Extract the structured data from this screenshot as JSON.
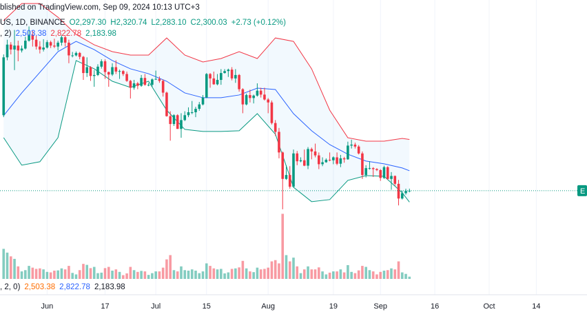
{
  "header": {
    "published": "blished on TradingView.com, Sep 09, 2024 10:13 UTC+3",
    "symbol": "US, 1D, BINANCE",
    "ohlc": [
      "O2,297.30",
      "H2,320.74",
      "L2,283.10",
      "C2,300.03",
      "+2.73 (+0.12%)"
    ]
  },
  "bb_legend": {
    "params": ", 2)",
    "values": [
      "2,503.38",
      "2,822.78",
      "2,183.98"
    ]
  },
  "bb_legend_lower": {
    "params": ", 2, 0)",
    "values": [
      "2,503.38",
      "2,822.78",
      "2,183.98"
    ]
  },
  "price_label": "E",
  "chart_data": {
    "type": "candlestick",
    "x": [
      "2024-05-20",
      "2024-05-21",
      "2024-05-22",
      "2024-05-23",
      "2024-05-24",
      "2024-05-25",
      "2024-05-26",
      "2024-05-27",
      "2024-05-28",
      "2024-05-29",
      "2024-05-30",
      "2024-05-31",
      "2024-06-01",
      "2024-06-02",
      "2024-06-03",
      "2024-06-04",
      "2024-06-05",
      "2024-06-06",
      "2024-06-07",
      "2024-06-08",
      "2024-06-09",
      "2024-06-10",
      "2024-06-11",
      "2024-06-12",
      "2024-06-13",
      "2024-06-14",
      "2024-06-15",
      "2024-06-16",
      "2024-06-17",
      "2024-06-18",
      "2024-06-19",
      "2024-06-20",
      "2024-06-21",
      "2024-06-22",
      "2024-06-23",
      "2024-06-24",
      "2024-06-25",
      "2024-06-26",
      "2024-06-27",
      "2024-06-28",
      "2024-06-29",
      "2024-06-30",
      "2024-07-01",
      "2024-07-02",
      "2024-07-03",
      "2024-07-04",
      "2024-07-05",
      "2024-07-06",
      "2024-07-07",
      "2024-07-08",
      "2024-07-09",
      "2024-07-10",
      "2024-07-11",
      "2024-07-12",
      "2024-07-13",
      "2024-07-14",
      "2024-07-15",
      "2024-07-16",
      "2024-07-17",
      "2024-07-18",
      "2024-07-19",
      "2024-07-20",
      "2024-07-21",
      "2024-07-22",
      "2024-07-23",
      "2024-07-24",
      "2024-07-25",
      "2024-07-26",
      "2024-07-27",
      "2024-07-28",
      "2024-07-29",
      "2024-07-30",
      "2024-07-31",
      "2024-08-01",
      "2024-08-02",
      "2024-08-03",
      "2024-08-04",
      "2024-08-05",
      "2024-08-06",
      "2024-08-07",
      "2024-08-08",
      "2024-08-09",
      "2024-08-10",
      "2024-08-11",
      "2024-08-12",
      "2024-08-13",
      "2024-08-14",
      "2024-08-15",
      "2024-08-16",
      "2024-08-17",
      "2024-08-18",
      "2024-08-19",
      "2024-08-20",
      "2024-08-21",
      "2024-08-22",
      "2024-08-23",
      "2024-08-24",
      "2024-08-25",
      "2024-08-26",
      "2024-08-27",
      "2024-08-28",
      "2024-08-29",
      "2024-08-30",
      "2024-08-31",
      "2024-09-01",
      "2024-09-02",
      "2024-09-03",
      "2024-09-04",
      "2024-09-05",
      "2024-09-06",
      "2024-09-07",
      "2024-09-08",
      "2024-09-09"
    ],
    "open": [
      3070,
      3660,
      3790,
      3740,
      3780,
      3730,
      3750,
      3830,
      3890,
      3840,
      3770,
      3740,
      3760,
      3815,
      3780,
      3770,
      3810,
      3865,
      3810,
      3680,
      3680,
      3705,
      3665,
      3500,
      3560,
      3470,
      3480,
      3565,
      3620,
      3510,
      3485,
      3560,
      3515,
      3520,
      3490,
      3420,
      3350,
      3395,
      3370,
      3450,
      3380,
      3380,
      3435,
      3440,
      3420,
      3300,
      3060,
      2980,
      3070,
      2930,
      3020,
      3070,
      3100,
      3100,
      3135,
      3180,
      3250,
      3490,
      3445,
      3385,
      3430,
      3500,
      3520,
      3535,
      3445,
      3480,
      3335,
      3180,
      3275,
      3245,
      3270,
      3320,
      3280,
      3230,
      3200,
      2990,
      2900,
      2690,
      2420,
      2460,
      2340,
      2680,
      2600,
      2610,
      2555,
      2725,
      2700,
      2660,
      2570,
      2590,
      2615,
      2610,
      2640,
      2575,
      2630,
      2620,
      2760,
      2770,
      2750,
      2680,
      2460,
      2530,
      2530,
      2520,
      2510,
      2430,
      2540,
      2420,
      2450,
      2370,
      2220,
      2275,
      2297.3
    ],
    "high": [
      3690,
      3840,
      3815,
      3940,
      3830,
      3780,
      3870,
      3975,
      3930,
      3880,
      3825,
      3845,
      3835,
      3830,
      3850,
      3830,
      3885,
      3880,
      3840,
      3715,
      3720,
      3715,
      3675,
      3660,
      3570,
      3530,
      3590,
      3640,
      3640,
      3515,
      3600,
      3630,
      3535,
      3530,
      3515,
      3430,
      3430,
      3410,
      3480,
      3490,
      3400,
      3445,
      3525,
      3465,
      3435,
      3310,
      3110,
      3080,
      3080,
      3090,
      3110,
      3150,
      3215,
      3155,
      3205,
      3275,
      3500,
      3500,
      3515,
      3490,
      3540,
      3540,
      3545,
      3560,
      3540,
      3490,
      3345,
      3290,
      3330,
      3280,
      3395,
      3350,
      3350,
      3245,
      3220,
      3020,
      2940,
      2700,
      2560,
      2550,
      2720,
      2705,
      2640,
      2720,
      2745,
      2740,
      2780,
      2690,
      2640,
      2630,
      2690,
      2650,
      2690,
      2665,
      2645,
      2800,
      2820,
      2790,
      2765,
      2700,
      2560,
      2600,
      2540,
      2530,
      2520,
      2555,
      2550,
      2490,
      2455,
      2410,
      2300,
      2320,
      2320.74
    ],
    "low": [
      3050,
      3630,
      3690,
      3530,
      3620,
      3710,
      3740,
      3820,
      3770,
      3740,
      3700,
      3720,
      3750,
      3755,
      3755,
      3730,
      3780,
      3770,
      3600,
      3660,
      3670,
      3640,
      3430,
      3460,
      3420,
      3360,
      3470,
      3545,
      3440,
      3360,
      3470,
      3490,
      3440,
      3470,
      3410,
      3240,
      3330,
      3335,
      3360,
      3370,
      3365,
      3360,
      3430,
      3400,
      3260,
      3055,
      2810,
      2960,
      2930,
      2840,
      3010,
      3050,
      3080,
      3050,
      3115,
      3170,
      3245,
      3350,
      3380,
      3375,
      3380,
      3495,
      3460,
      3425,
      3400,
      3310,
      3090,
      3170,
      3200,
      3190,
      3260,
      3250,
      3220,
      3090,
      2975,
      2860,
      2630,
      2110,
      2410,
      2320,
      2330,
      2560,
      2590,
      2550,
      2520,
      2620,
      2640,
      2520,
      2550,
      2585,
      2600,
      2570,
      2560,
      2540,
      2585,
      2615,
      2730,
      2730,
      2670,
      2420,
      2435,
      2515,
      2440,
      2500,
      2400,
      2420,
      2410,
      2310,
      2350,
      2150,
      2210,
      2260,
      2283.1
    ],
    "close": [
      3660,
      3790,
      3740,
      3780,
      3730,
      3750,
      3830,
      3890,
      3840,
      3770,
      3740,
      3760,
      3815,
      3780,
      3770,
      3810,
      3865,
      3810,
      3680,
      3680,
      3705,
      3665,
      3500,
      3560,
      3470,
      3480,
      3565,
      3620,
      3510,
      3485,
      3560,
      3515,
      3520,
      3490,
      3420,
      3350,
      3395,
      3370,
      3450,
      3380,
      3380,
      3435,
      3440,
      3420,
      3300,
      3060,
      2980,
      3070,
      2930,
      3020,
      3070,
      3100,
      3100,
      3135,
      3180,
      3250,
      3490,
      3445,
      3385,
      3430,
      3500,
      3520,
      3535,
      3445,
      3480,
      3335,
      3180,
      3275,
      3245,
      3270,
      3320,
      3280,
      3230,
      3200,
      2990,
      2900,
      2690,
      2420,
      2460,
      2340,
      2680,
      2600,
      2610,
      2555,
      2725,
      2700,
      2660,
      2570,
      2590,
      2615,
      2610,
      2640,
      2575,
      2630,
      2620,
      2760,
      2770,
      2750,
      2680,
      2460,
      2530,
      2530,
      2520,
      2510,
      2430,
      2540,
      2420,
      2450,
      2370,
      2220,
      2275,
      2297.3,
      2300.03
    ],
    "volume": [
      1200000,
      1050000,
      900000,
      800000,
      500000,
      300000,
      350000,
      520000,
      450000,
      400000,
      420000,
      380000,
      280000,
      260000,
      330000,
      340000,
      420000,
      380000,
      520000,
      240000,
      180000,
      350000,
      600000,
      560000,
      430000,
      480000,
      230000,
      250000,
      430000,
      480000,
      330000,
      380000,
      280000,
      150000,
      220000,
      480000,
      350000,
      280000,
      320000,
      300000,
      160000,
      230000,
      300000,
      300000,
      450000,
      780000,
      950000,
      350000,
      300000,
      500000,
      350000,
      330000,
      380000,
      330000,
      230000,
      300000,
      620000,
      520000,
      420000,
      380000,
      400000,
      220000,
      260000,
      400000,
      420000,
      460000,
      720000,
      420000,
      300000,
      270000,
      450000,
      380000,
      400000,
      450000,
      700000,
      750000,
      620000,
      2600000,
      950000,
      700000,
      850000,
      500000,
      230000,
      380000,
      500000,
      380000,
      380000,
      460000,
      300000,
      180000,
      250000,
      300000,
      300000,
      380000,
      260000,
      550000,
      280000,
      230000,
      340000,
      520000,
      480000,
      350000,
      300000,
      180000,
      280000,
      330000,
      350000,
      420000,
      380000,
      700000,
      260000,
      200000,
      90000
    ],
    "up_color": "#089981",
    "down_color": "#f23645",
    "ylim": [
      1400,
      4245
    ],
    "volume_ylim": [
      0,
      2750000
    ],
    "xlim": [
      "2024-05-19",
      "2024-10-28"
    ],
    "xticks": [
      {
        "value": "2024-06-01",
        "label": "Jun"
      },
      {
        "value": "2024-06-17",
        "label": "17"
      },
      {
        "value": "2024-07-01",
        "label": "Jul"
      },
      {
        "value": "2024-07-15",
        "label": "15"
      },
      {
        "value": "2024-08-01",
        "label": "Aug"
      },
      {
        "value": "2024-08-19",
        "label": "19"
      },
      {
        "value": "2024-09-01",
        "label": "Sep"
      },
      {
        "value": "2024-09-16",
        "label": "16"
      },
      {
        "value": "2024-10-01",
        "label": "Oct"
      },
      {
        "value": "2024-10-14",
        "label": "14"
      }
    ],
    "grid": true,
    "bands": {
      "x": [
        "2024-05-20",
        "2024-05-25",
        "2024-05-30",
        "2024-06-04",
        "2024-06-09",
        "2024-06-14",
        "2024-06-19",
        "2024-06-24",
        "2024-06-29",
        "2024-07-04",
        "2024-07-09",
        "2024-07-14",
        "2024-07-19",
        "2024-07-24",
        "2024-07-29",
        "2024-08-03",
        "2024-08-08",
        "2024-08-13",
        "2024-08-18",
        "2024-08-23",
        "2024-08-28",
        "2024-09-02",
        "2024-09-07",
        "2024-09-09"
      ],
      "upper": {
        "color": "#f23645",
        "values": [
          4034,
          4209,
          4209,
          4069,
          3894,
          3788,
          3718,
          3683,
          3683,
          3858,
          3683,
          3613,
          3648,
          3718,
          3648,
          3858,
          3823,
          3543,
          3121,
          2840,
          2805,
          2805,
          2833,
          2822.78
        ]
      },
      "basis": {
        "color": "#2962ff",
        "values": [
          3065,
          3297,
          3507,
          3718,
          3823,
          3739,
          3627,
          3543,
          3493,
          3416,
          3297,
          3248,
          3248,
          3276,
          3346,
          3332,
          3086,
          2911,
          2770,
          2672,
          2602,
          2574,
          2532,
          2503.38
        ]
      },
      "lower": {
        "color": "#089981",
        "values": [
          2841,
          2560,
          2595,
          2841,
          3627,
          3543,
          3416,
          3353,
          3416,
          3121,
          2925,
          2904,
          2904,
          2911,
          3086,
          2876,
          2335,
          2188,
          2209,
          2405,
          2454,
          2447,
          2279,
          2183.98
        ]
      }
    }
  }
}
